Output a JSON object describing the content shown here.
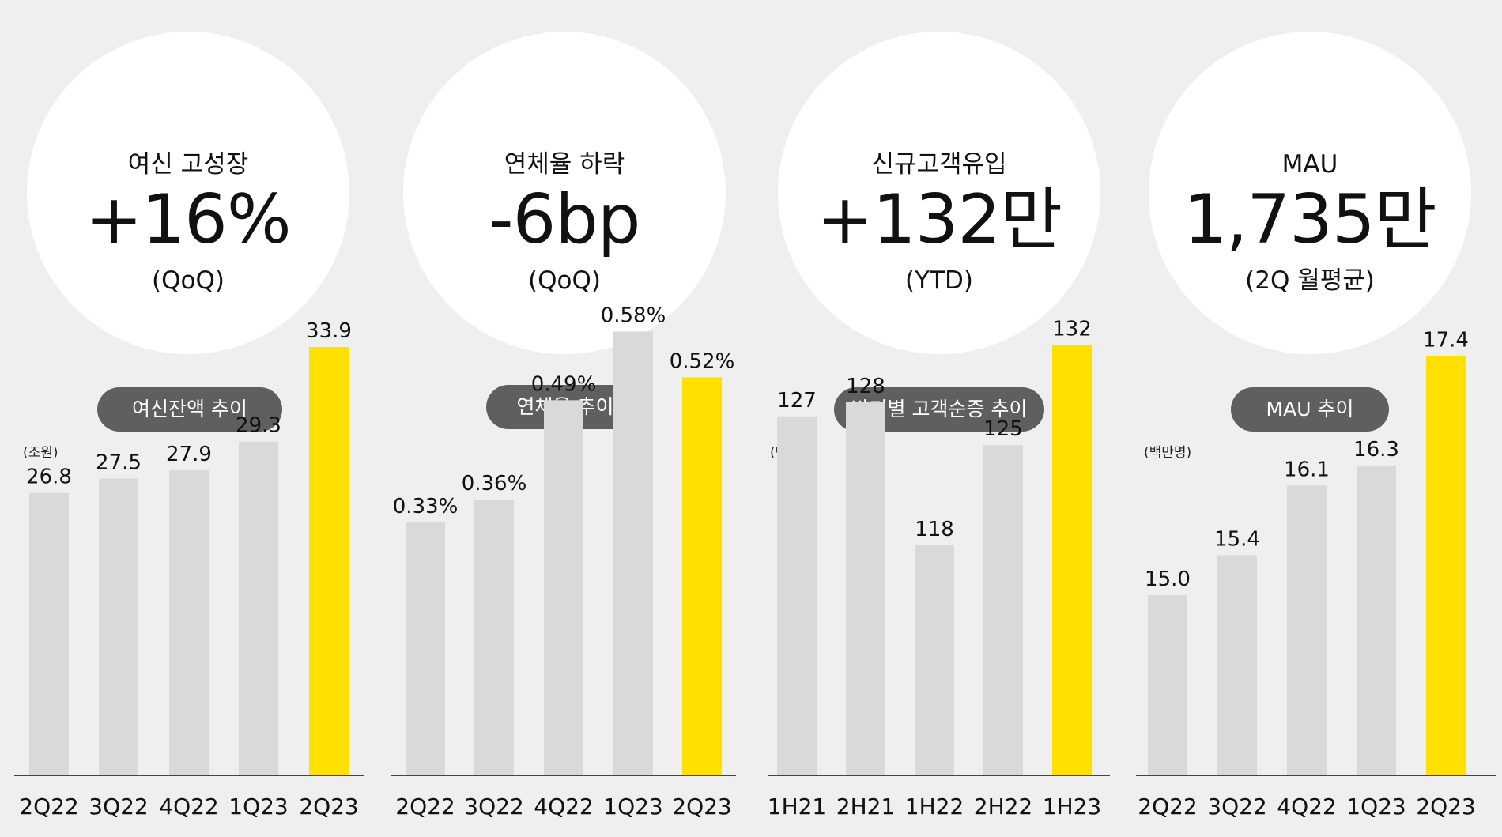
{
  "colors": {
    "bar": "#d9d9d9",
    "highlight": "#ffe000",
    "pill": "#5f5f5f",
    "axis": "#444444"
  },
  "panels": [
    {
      "circle": {
        "label": "여신 고성장",
        "value": "+16%",
        "sub": "(QoQ)"
      },
      "pill": "여신잔액 추이",
      "unit": "(조원)",
      "chart_data": {
        "type": "bar",
        "categories": [
          "2Q22",
          "3Q22",
          "4Q22",
          "1Q23",
          "2Q23"
        ],
        "values": [
          26.8,
          27.5,
          27.9,
          29.3,
          33.9
        ],
        "labels": [
          "26.8",
          "27.5",
          "27.9",
          "29.3",
          "33.9"
        ],
        "highlight_index": 4,
        "ylabel": "(조원)",
        "ylim": [
          13.1,
          35.4
        ]
      }
    },
    {
      "circle": {
        "label": "연체율 하락",
        "value": "-6bp",
        "sub": "(QoQ)"
      },
      "pill": "연체율 추이",
      "unit": "",
      "chart_data": {
        "type": "bar",
        "categories": [
          "2Q22",
          "3Q22",
          "4Q22",
          "1Q23",
          "2Q23"
        ],
        "values": [
          0.33,
          0.36,
          0.49,
          0.58,
          0.52
        ],
        "labels": [
          "0.33%",
          "0.36%",
          "0.49%",
          "0.58%",
          "0.52%"
        ],
        "highlight_index": 4,
        "ylabel": "",
        "ylim": [
          0.0,
          0.6
        ]
      }
    },
    {
      "circle": {
        "label": "신규고객유입",
        "value": "+132만",
        "sub": "(YTD)"
      },
      "pill": "반기별 고객순증 추이",
      "unit": "(만명)",
      "chart_data": {
        "type": "bar",
        "categories": [
          "1H21",
          "2H21",
          "1H22",
          "2H22",
          "1H23"
        ],
        "values": [
          127,
          128,
          118,
          125,
          132
        ],
        "labels": [
          "127",
          "128",
          "118",
          "125",
          "132"
        ],
        "highlight_index": 4,
        "ylabel": "(만명)",
        "ylim": [
          102,
          134
        ]
      }
    },
    {
      "circle": {
        "label": "MAU",
        "value": "1,735만",
        "sub": "(2Q 월평균)"
      },
      "pill": "MAU 추이",
      "unit": "(백만명)",
      "chart_data": {
        "type": "bar",
        "categories": [
          "2Q22",
          "3Q22",
          "4Q22",
          "1Q23",
          "2Q23"
        ],
        "values": [
          15.0,
          15.4,
          16.1,
          16.3,
          17.4
        ],
        "labels": [
          "15.0",
          "15.4",
          "16.1",
          "16.3",
          "17.4"
        ],
        "highlight_index": 4,
        "ylabel": "(백만명)",
        "ylim": [
          13.2,
          17.8
        ]
      }
    }
  ]
}
